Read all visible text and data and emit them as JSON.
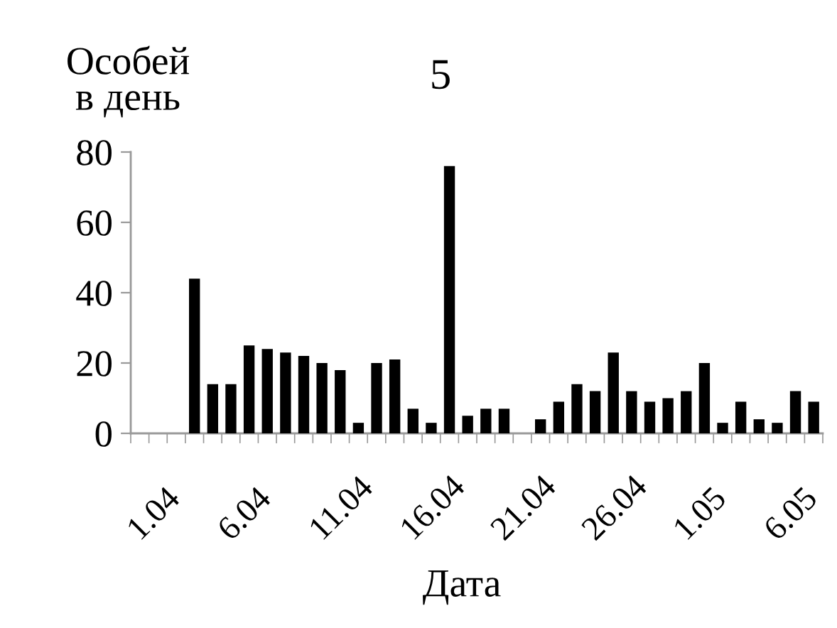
{
  "chart_data": {
    "type": "bar",
    "title": "5",
    "xlabel": "Дата",
    "ylabel": "Особей\nв день",
    "categories": [
      "1.04",
      null,
      null,
      null,
      null,
      "6.04",
      null,
      null,
      null,
      null,
      "11.04",
      null,
      null,
      null,
      null,
      "16.04",
      null,
      null,
      null,
      null,
      "21.04",
      null,
      null,
      null,
      null,
      "26.04",
      null,
      null,
      null,
      null,
      "1.05",
      null,
      null,
      null,
      null,
      "6.05",
      null,
      null
    ],
    "values": [
      null,
      null,
      null,
      44,
      14,
      14,
      25,
      24,
      23,
      22,
      20,
      18,
      3,
      20,
      21,
      7,
      3,
      76,
      5,
      7,
      7,
      null,
      4,
      9,
      14,
      12,
      23,
      12,
      9,
      10,
      12,
      20,
      3,
      9,
      4,
      3,
      12,
      9
    ],
    "color": "#000000",
    "ylim": [
      0,
      80
    ],
    "yticks": [
      0,
      20,
      40,
      60,
      80
    ]
  }
}
